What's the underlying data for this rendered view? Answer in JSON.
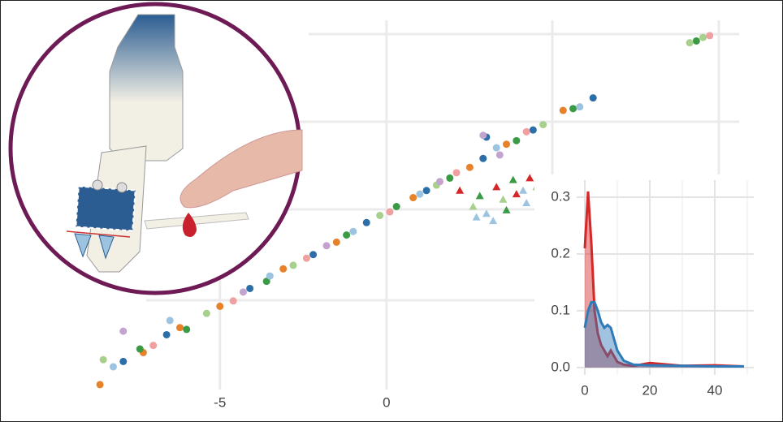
{
  "chart_data": [
    {
      "type": "scatter",
      "xlim": [
        -11.6,
        11.9
      ],
      "ylim": [
        -6.7,
        17
      ],
      "xticks": [
        -5,
        0
      ],
      "series": [
        {
          "marker": "circle",
          "color": "#e8822a",
          "x": [
            -8.6,
            -7.3,
            -6.2,
            -5.0,
            -3.1,
            -1.5,
            0.8,
            2.5,
            3.6,
            5.3
          ],
          "y": [
            -4.6,
            -2.8,
            -1.4,
            -0.2,
            1.9,
            3.4,
            5.9,
            7.6,
            8.9,
            10.8
          ]
        },
        {
          "marker": "circle",
          "color": "#2b6ea8",
          "x": [
            -7.9,
            -6.6,
            -4.1,
            -2.2,
            -0.6,
            1.2,
            2.9,
            4.4,
            6.2,
            3.0
          ],
          "y": [
            -3.3,
            -1.8,
            0.8,
            2.7,
            4.5,
            6.3,
            8.1,
            9.7,
            11.5,
            9.3
          ]
        },
        {
          "marker": "circle",
          "color": "#3a9a45",
          "x": [
            -7.4,
            -6.0,
            -3.6,
            -1.2,
            0.3,
            1.9,
            3.9,
            5.6,
            9.3
          ],
          "y": [
            -2.6,
            -1.5,
            1.2,
            3.8,
            5.4,
            7.0,
            9.1,
            10.9,
            14.7
          ]
        },
        {
          "marker": "circle",
          "color": "#a8d08d",
          "x": [
            -8.5,
            -5.4,
            -2.8,
            -0.2,
            1.5,
            4.7,
            9.5,
            9.1
          ],
          "y": [
            -3.2,
            -0.6,
            2.1,
            4.9,
            6.6,
            10.0,
            14.9,
            14.6
          ]
        },
        {
          "marker": "circle",
          "color": "#f0a0a0",
          "x": [
            -7.0,
            -4.6,
            -2.4,
            0.1,
            2.1,
            4.2,
            9.7
          ],
          "y": [
            -2.4,
            0.1,
            2.5,
            5.1,
            7.3,
            9.6,
            15.0
          ]
        },
        {
          "marker": "circle",
          "color": "#9cc3e0",
          "x": [
            -8.2,
            -6.5,
            -3.5,
            -1.0,
            1.0,
            3.3,
            5.8
          ],
          "y": [
            -3.6,
            -1.0,
            1.5,
            4.0,
            6.1,
            8.7,
            11.0
          ]
        },
        {
          "marker": "circle",
          "color": "#c3a3d0",
          "x": [
            -7.9,
            -4.3,
            -1.8,
            1.6,
            3.4,
            2.9
          ],
          "y": [
            -1.6,
            0.6,
            3.2,
            6.8,
            8.3,
            9.4
          ]
        },
        {
          "marker": "triangle",
          "color": "#d62728",
          "x": [
            2.2,
            3.3,
            4.3,
            3.9
          ],
          "y": [
            6.3,
            6.5,
            7.0,
            6.1
          ]
        },
        {
          "marker": "triangle",
          "color": "#3a9a45",
          "x": [
            2.8,
            3.8,
            3.6,
            4.6
          ],
          "y": [
            6.0,
            6.9,
            5.2,
            6.8
          ]
        },
        {
          "marker": "triangle",
          "color": "#9cc3e0",
          "x": [
            3.0,
            4.2,
            2.7,
            3.2,
            4.1
          ],
          "y": [
            5.0,
            5.6,
            4.8,
            4.6,
            6.3
          ]
        },
        {
          "marker": "triangle",
          "color": "#a8d08d",
          "x": [
            2.6,
            3.5,
            4.5
          ],
          "y": [
            5.4,
            5.8,
            6.5
          ]
        }
      ]
    },
    {
      "type": "area",
      "xlim": [
        -2.5,
        52
      ],
      "ylim": [
        -0.013,
        0.33
      ],
      "xticks": [
        0,
        20,
        40
      ],
      "yticks": [
        {
          "value": 0,
          "label": "0.0"
        },
        0.1,
        0.2,
        0.3
      ],
      "x": [
        0,
        1,
        2,
        3,
        4,
        5,
        6,
        7,
        8,
        9,
        10,
        12,
        15,
        20,
        30,
        40,
        49
      ],
      "series": [
        {
          "color": "#d62728",
          "values": [
            0.21,
            0.31,
            0.22,
            0.1,
            0.06,
            0.04,
            0.03,
            0.02,
            0.03,
            0.02,
            0.01,
            0.005,
            0.003,
            0.008,
            0.003,
            0.004,
            0.002
          ]
        },
        {
          "color": "#2f7ab8",
          "values": [
            0.07,
            0.1,
            0.115,
            0.115,
            0.1,
            0.08,
            0.07,
            0.075,
            0.07,
            0.05,
            0.03,
            0.012,
            0.005,
            0.004,
            0.003,
            0.002,
            0.002
          ]
        }
      ]
    }
  ]
}
